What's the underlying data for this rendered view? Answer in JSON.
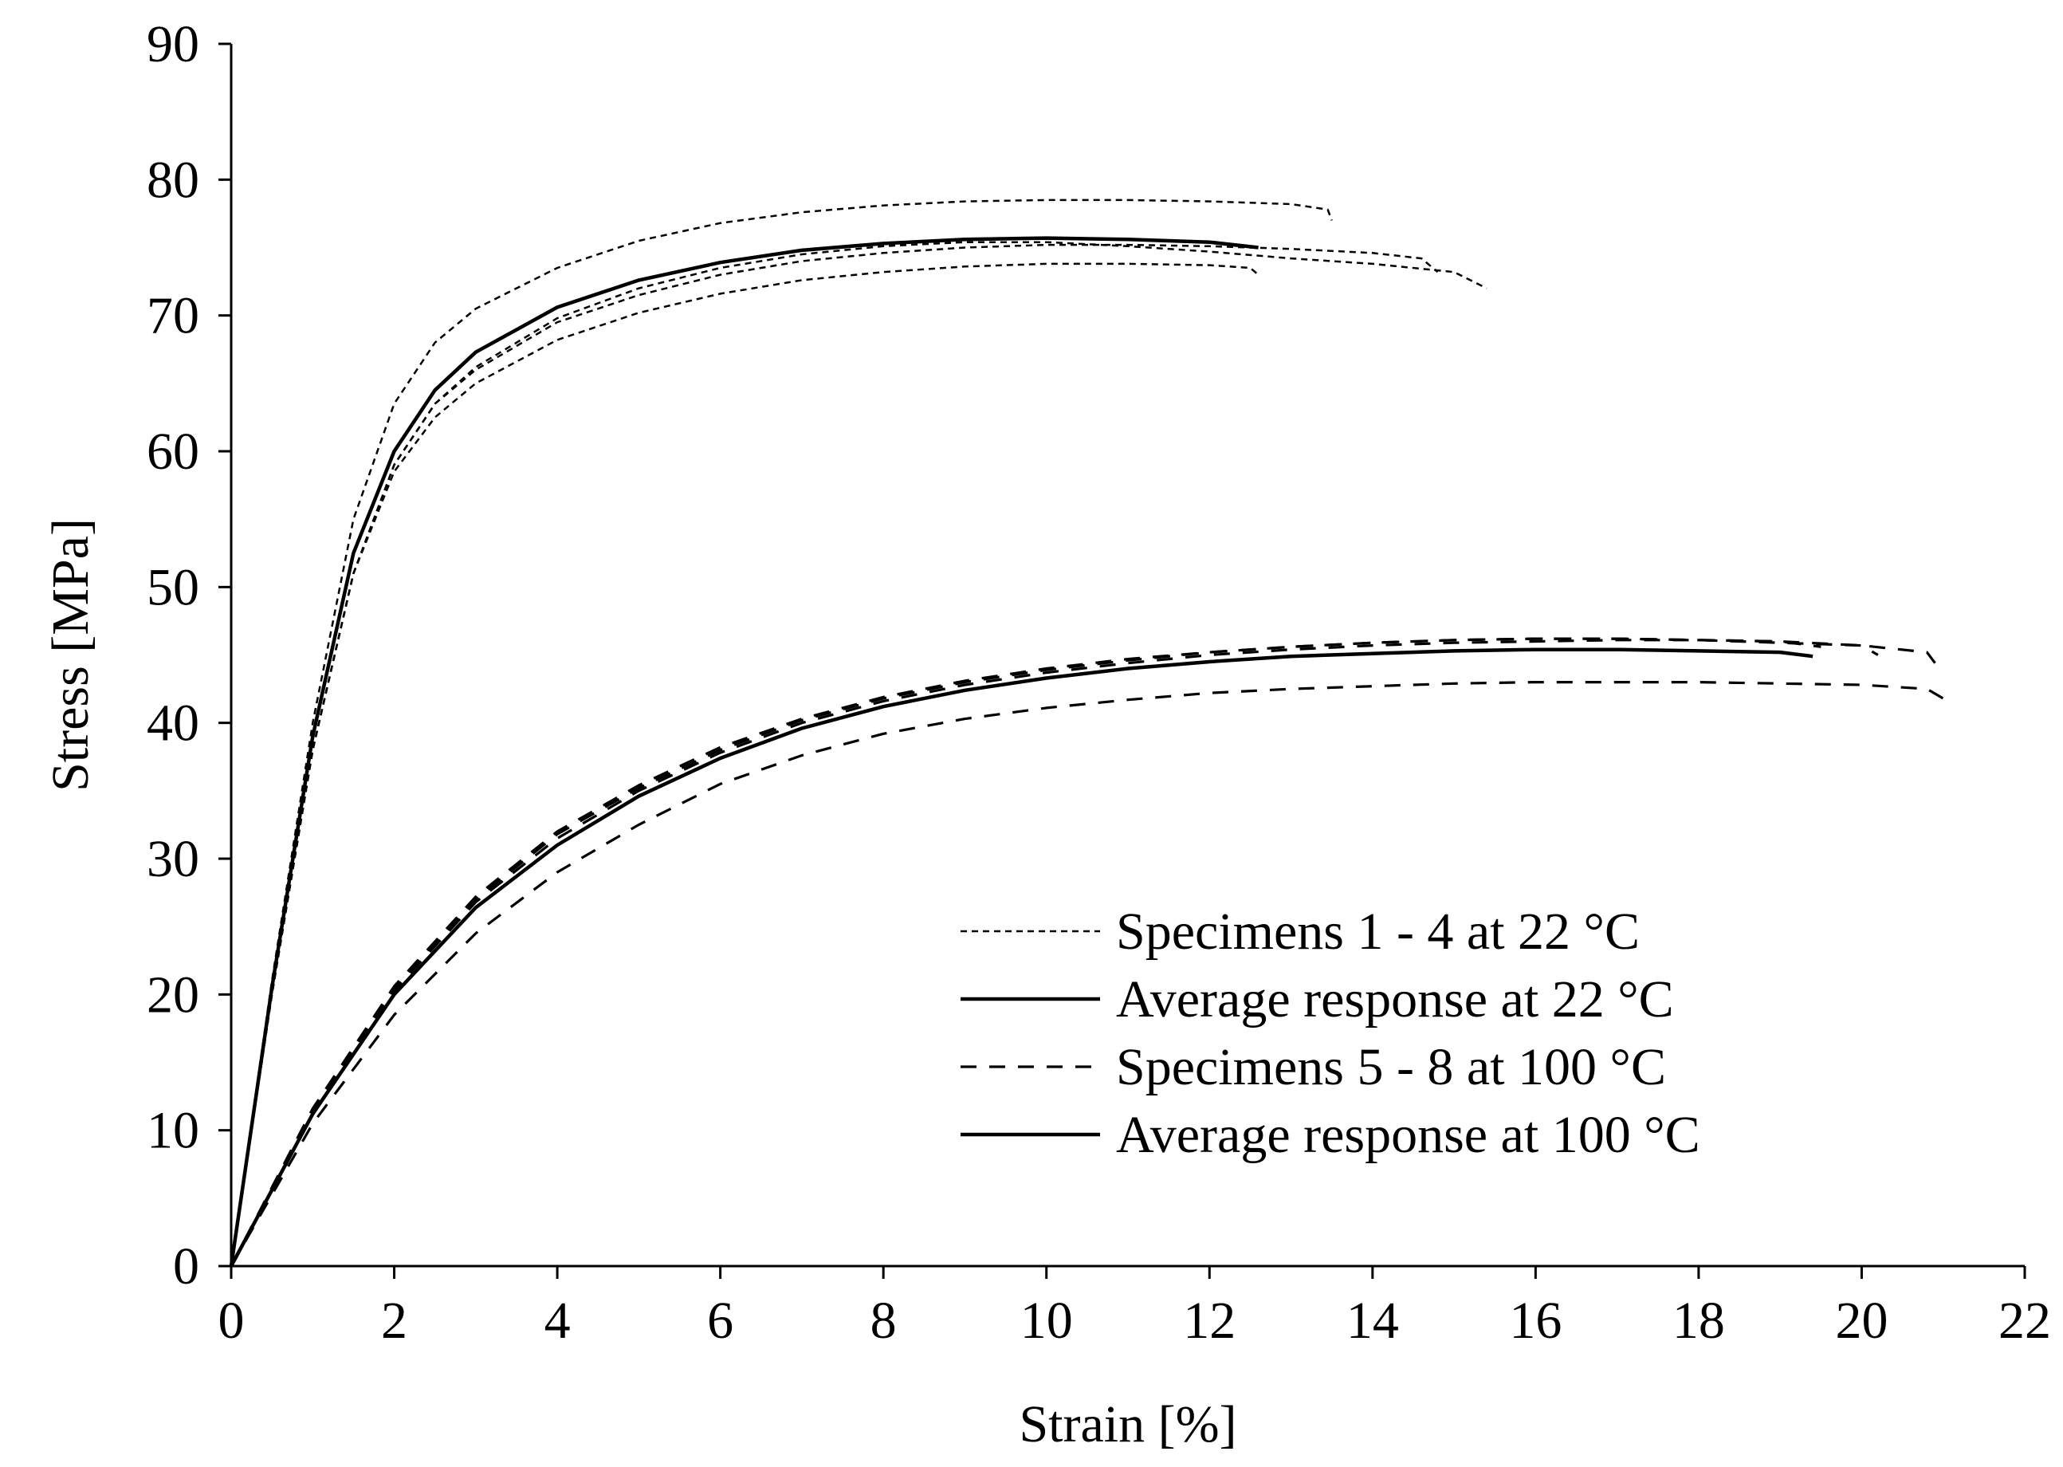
{
  "chart_data": {
    "type": "line",
    "xlabel": "Strain [%]",
    "ylabel": "Stress [MPa]",
    "xlim": [
      0,
      22
    ],
    "ylim": [
      0,
      90
    ],
    "xticks": [
      0,
      2,
      4,
      6,
      8,
      10,
      12,
      14,
      16,
      18,
      20,
      22
    ],
    "yticks": [
      0,
      10,
      20,
      30,
      40,
      50,
      60,
      70,
      80,
      90
    ],
    "grid": false,
    "legend_position": "lower-right",
    "legend": [
      {
        "label": "Specimens  1 - 4 at 22 °C",
        "style": "short-dash"
      },
      {
        "label": "Average response at 22 °C",
        "style": "solid"
      },
      {
        "label": "Specimens  5 - 8 at 100 °C",
        "style": "long-dash"
      },
      {
        "label": "Average response at 100 °C",
        "style": "solid"
      }
    ],
    "series": [
      {
        "name": "Specimen 1 at 22 °C",
        "group": "Specimens  1 - 4 at 22 °C",
        "style": "short-dash",
        "x": [
          0,
          0.5,
          1,
          1.5,
          2,
          2.5,
          3,
          4,
          5,
          6,
          7,
          8,
          9,
          10,
          11,
          12,
          13,
          13.45,
          13.5
        ],
        "y": [
          0,
          21,
          40,
          55,
          63.5,
          68,
          70.5,
          73.5,
          75.5,
          76.8,
          77.6,
          78.1,
          78.4,
          78.5,
          78.5,
          78.4,
          78.2,
          77.8,
          77.0
        ]
      },
      {
        "name": "Specimen 2 at 22 °C",
        "group": "Specimens  1 - 4 at 22 °C",
        "style": "short-dash",
        "x": [
          0,
          0.5,
          1,
          1.5,
          2,
          2.5,
          3,
          4,
          5,
          6,
          7,
          8,
          9,
          10,
          11,
          12,
          13,
          14,
          14.6,
          14.8
        ],
        "y": [
          0,
          20,
          38,
          51,
          59,
          63.5,
          66,
          69.5,
          71.5,
          73,
          74,
          74.6,
          75,
          75.2,
          75.2,
          75.1,
          74.9,
          74.6,
          74.2,
          73.2
        ]
      },
      {
        "name": "Specimen 3 at 22 °C",
        "group": "Specimens  1 - 4 at 22 °C",
        "style": "short-dash",
        "x": [
          0,
          0.5,
          1,
          1.5,
          2,
          2.5,
          3,
          4,
          5,
          6,
          7,
          8,
          9,
          10,
          11,
          12,
          12.5,
          12.6
        ],
        "y": [
          0,
          20,
          38,
          51,
          58.5,
          62.5,
          65,
          68.2,
          70.2,
          71.6,
          72.6,
          73.2,
          73.6,
          73.8,
          73.8,
          73.7,
          73.5,
          73.0
        ]
      },
      {
        "name": "Specimen 4 at 22 °C",
        "group": "Specimens  1 - 4 at 22 °C",
        "style": "short-dash",
        "x": [
          0,
          0.5,
          1,
          1.5,
          2,
          2.5,
          3,
          4,
          5,
          6,
          7,
          8,
          9,
          10,
          11,
          12,
          13,
          14,
          15,
          15.4
        ],
        "y": [
          0,
          20,
          38,
          51,
          59,
          63.5,
          66.2,
          69.8,
          72,
          73.5,
          74.5,
          75.1,
          75.4,
          75.4,
          75.1,
          74.7,
          74.2,
          73.8,
          73.2,
          72.0
        ]
      },
      {
        "name": "Average response at 22 °C",
        "group": "Average response at 22 °C",
        "style": "solid",
        "x": [
          0,
          0.5,
          1,
          1.5,
          2,
          2.5,
          3,
          4,
          5,
          6,
          7,
          8,
          9,
          10,
          11,
          12,
          12.6
        ],
        "y": [
          0,
          20.5,
          39,
          52.5,
          60,
          64.5,
          67.3,
          70.6,
          72.6,
          73.9,
          74.8,
          75.3,
          75.6,
          75.7,
          75.6,
          75.4,
          75.0
        ]
      },
      {
        "name": "Specimen 5 at 100 °C",
        "group": "Specimens  5 - 8 at 100 °C",
        "style": "long-dash",
        "x": [
          0,
          1,
          2,
          3,
          4,
          5,
          6,
          7,
          8,
          9,
          10,
          11,
          12,
          13,
          14,
          15,
          16,
          17,
          18,
          19,
          19.5
        ],
        "y": [
          0,
          11.5,
          20.5,
          27,
          31.8,
          35.2,
          38,
          40.2,
          41.8,
          43,
          43.9,
          44.6,
          45.2,
          45.6,
          45.9,
          46.1,
          46.2,
          46.2,
          46.1,
          46.0,
          45.6
        ]
      },
      {
        "name": "Specimen 6 at 100 °C",
        "group": "Specimens  5 - 8 at 100 °C",
        "style": "long-dash",
        "x": [
          0,
          1,
          2,
          3,
          4,
          5,
          6,
          7,
          8,
          9,
          10,
          11,
          12,
          13,
          14,
          15,
          16,
          17,
          18,
          19,
          20,
          20.2
        ],
        "y": [
          0,
          11.4,
          20.3,
          26.8,
          31.5,
          35,
          37.8,
          40,
          41.6,
          42.8,
          43.7,
          44.4,
          45,
          45.4,
          45.7,
          45.9,
          46,
          46.1,
          46.1,
          45.9,
          45.7,
          45.0
        ]
      },
      {
        "name": "Specimen 7 at 100 °C",
        "group": "Specimens  5 - 8 at 100 °C",
        "style": "long-dash",
        "x": [
          0,
          1,
          2,
          3,
          4,
          5,
          6,
          7,
          8,
          9,
          10,
          11,
          12,
          13,
          14,
          15,
          16,
          17,
          18,
          19,
          20,
          20.8,
          20.9
        ],
        "y": [
          0,
          11.6,
          20.6,
          27.2,
          32,
          35.4,
          38.2,
          40.3,
          41.9,
          43.1,
          44,
          44.7,
          45.2,
          45.6,
          45.9,
          46.1,
          46.2,
          46.2,
          46.1,
          46.0,
          45.7,
          45.2,
          44.4
        ]
      },
      {
        "name": "Specimen 8 at 100 °C",
        "group": "Specimens  5 - 8 at 100 °C",
        "style": "long-dash",
        "x": [
          0,
          1,
          2,
          3,
          4,
          5,
          6,
          7,
          8,
          9,
          10,
          11,
          12,
          13,
          14,
          15,
          16,
          17,
          18,
          19,
          20,
          20.8,
          21
        ],
        "y": [
          0,
          10.5,
          18.5,
          24.5,
          29,
          32.5,
          35.5,
          37.6,
          39.2,
          40.3,
          41.1,
          41.7,
          42.2,
          42.5,
          42.7,
          42.9,
          43,
          43,
          43,
          42.9,
          42.8,
          42.5,
          41.8
        ]
      },
      {
        "name": "Average response at 100 °C",
        "group": "Average response at 100 °C",
        "style": "solid",
        "x": [
          0,
          1,
          2,
          3,
          4,
          5,
          6,
          7,
          8,
          9,
          10,
          11,
          12,
          13,
          14,
          15,
          16,
          17,
          18,
          19,
          19.4
        ],
        "y": [
          0,
          11.2,
          20,
          26.4,
          31,
          34.6,
          37.4,
          39.6,
          41.2,
          42.4,
          43.3,
          44,
          44.5,
          44.9,
          45.1,
          45.3,
          45.4,
          45.4,
          45.3,
          45.2,
          44.9
        ]
      }
    ]
  }
}
